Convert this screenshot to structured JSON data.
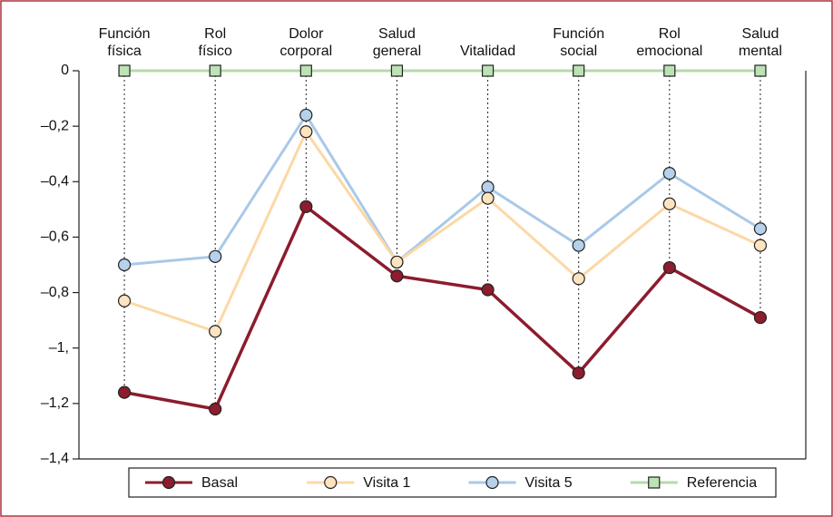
{
  "chart_data": {
    "type": "line",
    "categories": [
      "Función física",
      "Rol físico",
      "Dolor corporal",
      "Salud general",
      "Vitalidad",
      "Función social",
      "Rol emocional",
      "Salud mental"
    ],
    "series": [
      {
        "name": "Basal",
        "color": "#8c1c2e",
        "marker_fill": "#8c1c2e",
        "marker": "circle",
        "values": [
          -1.16,
          -1.22,
          -0.49,
          -0.74,
          -0.79,
          -1.09,
          -0.71,
          -0.89
        ]
      },
      {
        "name": "Visita 1",
        "color": "#fcd8a6",
        "marker_fill": "#fde3bf",
        "marker": "circle",
        "values": [
          -0.83,
          -0.94,
          -0.22,
          -0.69,
          -0.46,
          -0.75,
          -0.48,
          -0.63
        ]
      },
      {
        "name": "Visita 5",
        "color": "#a9c9e8",
        "marker_fill": "#b5d1ec",
        "marker": "circle",
        "values": [
          -0.7,
          -0.67,
          -0.16,
          -0.69,
          -0.42,
          -0.63,
          -0.37,
          -0.57
        ]
      },
      {
        "name": "Referencia",
        "color": "#b3dbaa",
        "marker_fill": "#bde2b3",
        "marker": "square",
        "values": [
          0,
          0,
          0,
          0,
          0,
          0,
          0,
          0
        ]
      }
    ],
    "ylim": [
      -1.4,
      0
    ],
    "yticks": [
      {
        "value": 0,
        "label": "0"
      },
      {
        "value": -0.2,
        "label": "–0,2"
      },
      {
        "value": -0.4,
        "label": "–0,4"
      },
      {
        "value": -0.6,
        "label": "–0,6"
      },
      {
        "value": -0.8,
        "label": "–0,8"
      },
      {
        "value": -1,
        "label": "–1,"
      },
      {
        "value": -1.2,
        "label": "–1,2"
      },
      {
        "value": -1.4,
        "label": "–1,4"
      }
    ],
    "grid": false,
    "legend": "bottom"
  }
}
